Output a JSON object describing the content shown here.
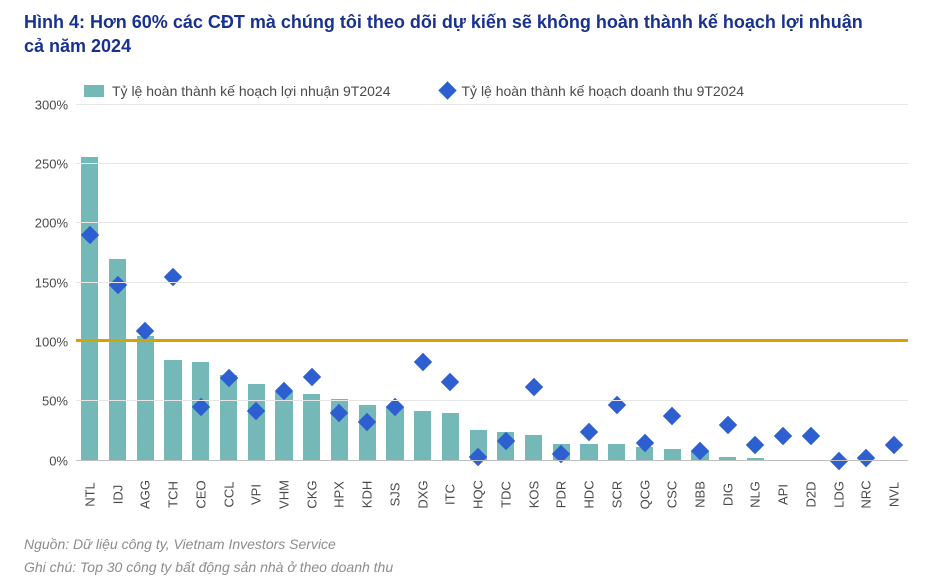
{
  "title_line1": "Hình 4: Hơn 60% các CĐT mà chúng tôi theo dõi dự kiến sẽ không hoàn thành kế hoạch lợi nhuận",
  "title_line2": "cả năm 2024",
  "legend": {
    "bar_label": "Tỷ lệ hoàn thành kế hoạch lợi nhuận 9T2024",
    "marker_label": "Tỷ lệ hoàn thành kế hoạch doanh thu 9T2024"
  },
  "source": "Nguồn: Dữ liệu công ty, Vietnam Investors Service",
  "note": "Ghi chú: Top 30 công ty bất động sản nhà ở theo doanh thu",
  "chart": {
    "type": "bar+scatter",
    "y_min": 0,
    "y_max": 300,
    "y_ticks": [
      0,
      50,
      100,
      150,
      200,
      250,
      300
    ],
    "y_suffix": "%",
    "ref_line_value": 100,
    "ref_line_color": "#d6a400",
    "bar_color": "#74b9b8",
    "marker_color": "#2e5fd1",
    "grid_color": "#e6e6e6",
    "axis_text_color": "#4a4a4a",
    "background_color": "#ffffff",
    "title_color": "#19328f",
    "bar_width_ratio": 0.62,
    "categories": [
      "NTL",
      "IDJ",
      "AGG",
      "TCH",
      "CEO",
      "CCL",
      "VPI",
      "VHM",
      "CKG",
      "HPX",
      "KDH",
      "SJS",
      "DXG",
      "ITC",
      "HQC",
      "TDC",
      "KOS",
      "PDR",
      "HDC",
      "SCR",
      "QCG",
      "CSC",
      "NBB",
      "DIG",
      "NLG",
      "API",
      "D2D",
      "LDG",
      "NRC",
      "NVL"
    ],
    "bar_values": [
      256,
      170,
      105,
      85,
      83,
      72,
      65,
      58,
      56,
      52,
      47,
      45,
      42,
      40,
      26,
      24,
      22,
      14,
      14,
      14,
      12,
      10,
      8,
      3,
      2,
      1,
      1,
      0,
      0,
      0
    ],
    "marker_values": [
      190,
      148,
      109,
      155,
      45,
      70,
      42,
      59,
      71,
      40,
      33,
      45,
      83,
      66,
      3,
      17,
      62,
      6,
      24,
      47,
      15,
      38,
      8,
      30,
      13,
      21,
      21,
      0,
      2,
      13
    ],
    "label_fontsize": 13,
    "tick_fontsize": 13
  }
}
